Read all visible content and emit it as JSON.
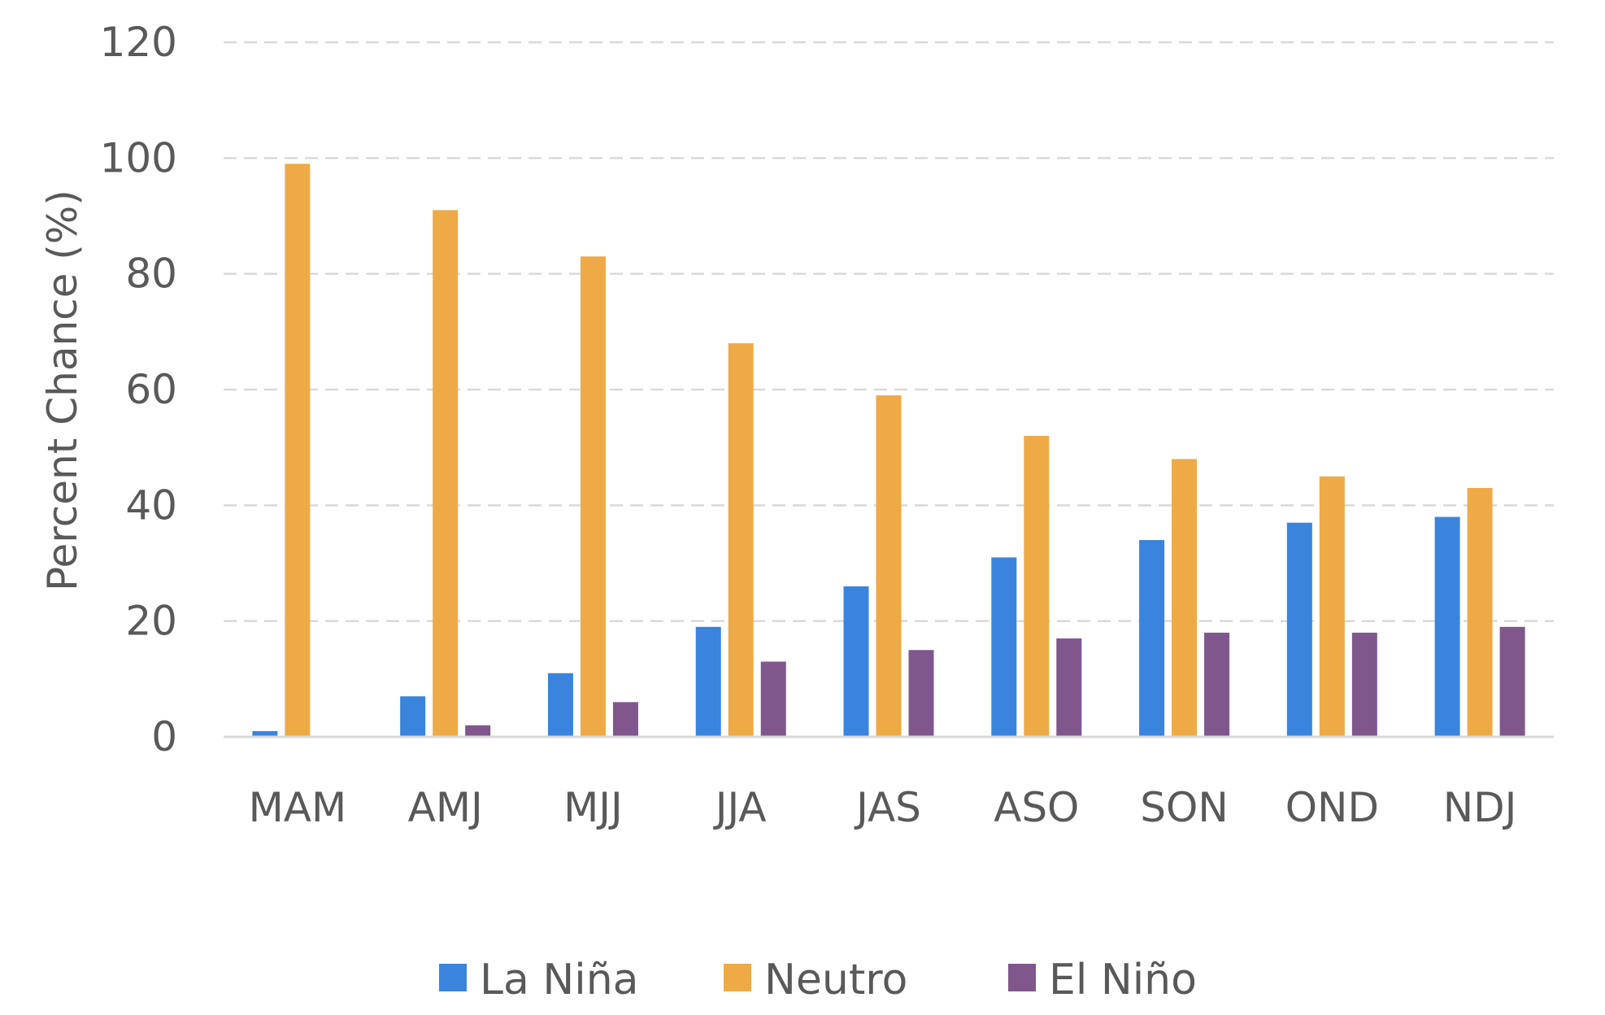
{
  "chart_data": {
    "type": "bar",
    "categories": [
      "MAM",
      "AMJ",
      "MJJ",
      "JJA",
      "JAS",
      "ASO",
      "SON",
      "OND",
      "NDJ"
    ],
    "series": [
      {
        "name": "La Niña",
        "color": "#3a84de",
        "values": [
          1,
          7,
          11,
          19,
          26,
          31,
          34,
          37,
          38
        ]
      },
      {
        "name": "Neutro",
        "color": "#eeaa47",
        "values": [
          99,
          91,
          83,
          68,
          59,
          52,
          48,
          45,
          43
        ]
      },
      {
        "name": "El Niño",
        "color": "#7f578d",
        "values": [
          0,
          2,
          6,
          13,
          15,
          17,
          18,
          18,
          19
        ]
      }
    ],
    "title": "",
    "xlabel": "",
    "ylabel": "Percent Chance (%)",
    "ylim": [
      0,
      120
    ],
    "yticks": [
      "0",
      "20",
      "40",
      "60",
      "80",
      "100",
      "120"
    ],
    "grid": true,
    "grid_style": "dashed",
    "legend_position": "bottom"
  }
}
